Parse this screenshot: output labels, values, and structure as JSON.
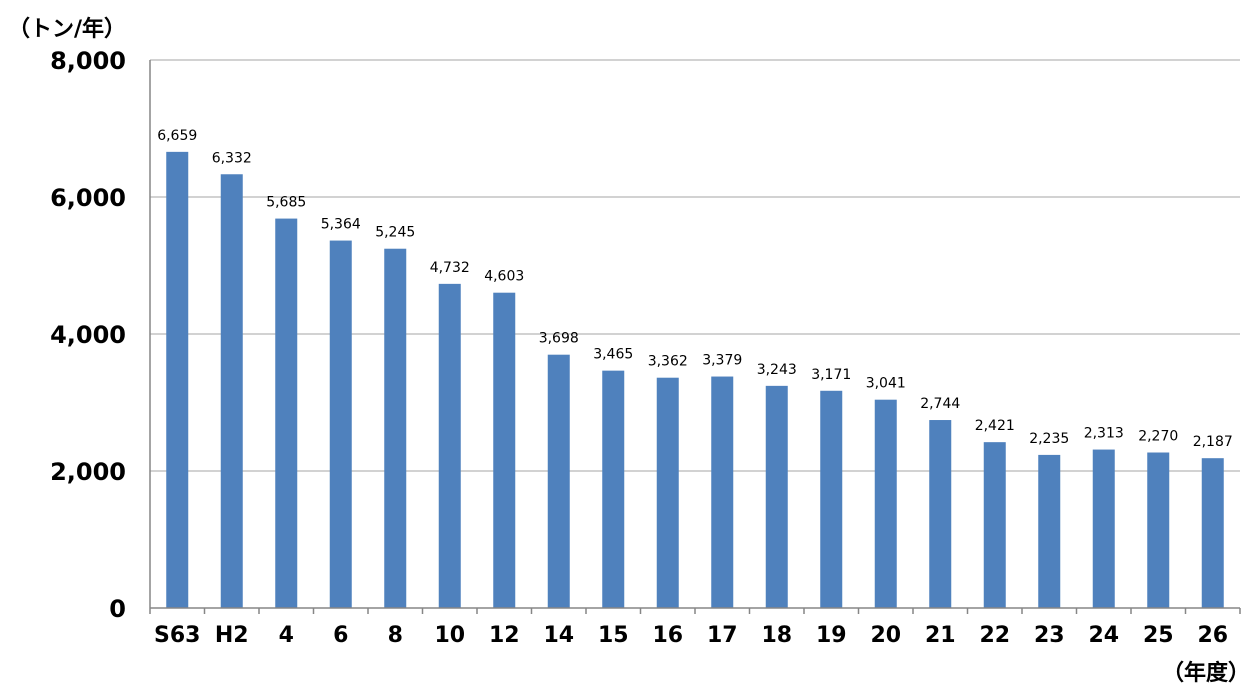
{
  "chart_data": {
    "type": "bar",
    "ylabel": "（トン/年）",
    "xlabel": "（年度）",
    "categories": [
      "S63",
      "H2",
      "4",
      "6",
      "8",
      "10",
      "12",
      "14",
      "15",
      "16",
      "17",
      "18",
      "19",
      "20",
      "21",
      "22",
      "23",
      "24",
      "25",
      "26"
    ],
    "values": [
      6659,
      6332,
      5685,
      5364,
      5245,
      4732,
      4603,
      3698,
      3465,
      3362,
      3379,
      3243,
      3171,
      3041,
      2744,
      2421,
      2235,
      2313,
      2270,
      2187
    ],
    "value_labels": [
      "6,659",
      "6,332",
      "5,685",
      "5,364",
      "5,245",
      "4,732",
      "4,603",
      "3,698",
      "3,465",
      "3,362",
      "3,379",
      "3,243",
      "3,171",
      "3,041",
      "2,744",
      "2,421",
      "2,235",
      "2,313",
      "2,270",
      "2,187"
    ],
    "ylim": [
      0,
      8000
    ],
    "yticks": [
      0,
      2000,
      4000,
      6000,
      8000
    ],
    "ytick_labels": [
      "0",
      "2,000",
      "4,000",
      "6,000",
      "8,000"
    ],
    "grid": true,
    "legend": "none",
    "bar_color": "#4f81bd"
  }
}
